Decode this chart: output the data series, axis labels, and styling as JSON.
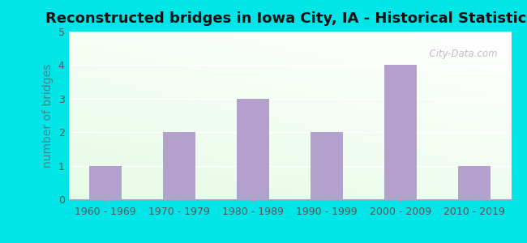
{
  "title": "Reconstructed bridges in Iowa City, IA - Historical Statistics",
  "categories": [
    "1960 - 1969",
    "1970 - 1979",
    "1980 - 1989",
    "1990 - 1999",
    "2000 - 2009",
    "2010 - 2019"
  ],
  "values": [
    1,
    2,
    3,
    2,
    4,
    1
  ],
  "bar_color": "#b3a0cc",
  "ylabel": "number of bridges",
  "ylim": [
    0,
    5
  ],
  "yticks": [
    0,
    1,
    2,
    3,
    4,
    5
  ],
  "title_fontsize": 13,
  "ylabel_fontsize": 10,
  "tick_fontsize": 9,
  "background_outer": "#00e5e8",
  "grid_color": "#ffffff",
  "watermark": "  City-Data.com"
}
